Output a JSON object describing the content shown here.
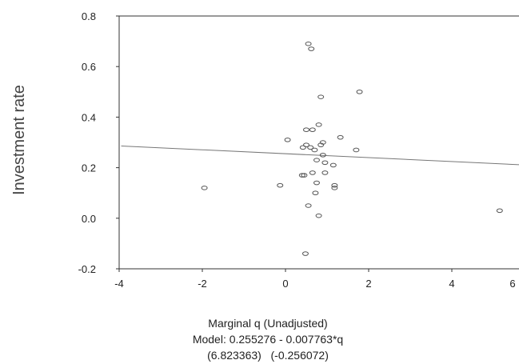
{
  "chart_data": {
    "type": "scatter",
    "ylabel": "Investment rate",
    "xlabel": "Marginal q (Unadjusted)",
    "model_line": "Model: 0.255276 - 0.007763*q",
    "tstats_line": "(6.823363)   (-0.256072)",
    "xlim": [
      -4,
      6
    ],
    "ylim": [
      -0.2,
      0.8
    ],
    "xticks": [
      "-4",
      "-2",
      "0",
      "2",
      "4",
      "6"
    ],
    "yticks": [
      "0.8",
      "0.6",
      "0.4",
      "0.2",
      "0.0",
      "-0.2"
    ],
    "fit": {
      "intercept": 0.255276,
      "slope": -0.007763
    },
    "grid": false,
    "marker_color": "#555555",
    "points": [
      {
        "x": 0.55,
        "y": 0.69
      },
      {
        "x": 0.62,
        "y": 0.67
      },
      {
        "x": 0.85,
        "y": 0.48
      },
      {
        "x": 1.78,
        "y": 0.5
      },
      {
        "x": 0.8,
        "y": 0.37
      },
      {
        "x": 0.05,
        "y": 0.31
      },
      {
        "x": 1.32,
        "y": 0.32
      },
      {
        "x": 0.5,
        "y": 0.35
      },
      {
        "x": 0.65,
        "y": 0.35
      },
      {
        "x": 0.42,
        "y": 0.28
      },
      {
        "x": 0.5,
        "y": 0.29
      },
      {
        "x": 0.6,
        "y": 0.28
      },
      {
        "x": 0.7,
        "y": 0.27
      },
      {
        "x": 0.85,
        "y": 0.29
      },
      {
        "x": 0.9,
        "y": 0.3
      },
      {
        "x": 1.7,
        "y": 0.27
      },
      {
        "x": 0.9,
        "y": 0.25
      },
      {
        "x": 0.75,
        "y": 0.23
      },
      {
        "x": 0.95,
        "y": 0.22
      },
      {
        "x": 1.15,
        "y": 0.21
      },
      {
        "x": 0.65,
        "y": 0.18
      },
      {
        "x": 0.45,
        "y": 0.17
      },
      {
        "x": 0.4,
        "y": 0.17
      },
      {
        "x": 0.95,
        "y": 0.18
      },
      {
        "x": 0.75,
        "y": 0.14
      },
      {
        "x": 1.18,
        "y": 0.13
      },
      {
        "x": 1.18,
        "y": 0.12
      },
      {
        "x": -0.13,
        "y": 0.13
      },
      {
        "x": 0.72,
        "y": 0.1
      },
      {
        "x": -1.95,
        "y": 0.12
      },
      {
        "x": 0.55,
        "y": 0.05
      },
      {
        "x": 0.8,
        "y": 0.01
      },
      {
        "x": 5.15,
        "y": 0.03
      },
      {
        "x": 0.48,
        "y": -0.14
      }
    ]
  }
}
